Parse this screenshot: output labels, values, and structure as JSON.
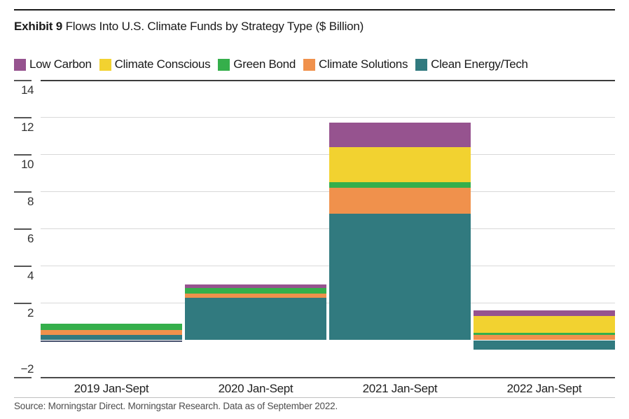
{
  "header": {
    "title_prefix": "Exhibit 9",
    "title_rest": " Flows Into U.S. Climate Funds by Strategy Type ($ Billion)"
  },
  "source_line": "Source: Morningstar Direct. Morningstar Research. Data as of September 2022.",
  "colors": {
    "grid_light": "#d9d9d9",
    "grid_dark_top": "#3c3c3c",
    "axis_line": "#4a4a4a",
    "tick_dash": "#555555",
    "text": "#1a1a1a"
  },
  "chart_data": {
    "type": "bar",
    "stacked": true,
    "title": "Flows Into U.S. Climate Funds by Strategy Type ($ Billion)",
    "unit": "$ Billion",
    "categories": [
      "2019 Jan-Sept",
      "2020 Jan-Sept",
      "2021 Jan-Sept",
      "2022 Jan-Sept"
    ],
    "series": [
      {
        "name": "Low Carbon",
        "color": "#96538f",
        "values": [
          -0.1,
          0.2,
          1.3,
          0.3
        ]
      },
      {
        "name": "Climate Conscious",
        "color": "#f2d230",
        "values": [
          0.0,
          0.0,
          1.9,
          0.9
        ]
      },
      {
        "name": "Green Bond",
        "color": "#35af4b",
        "values": [
          0.35,
          0.3,
          0.3,
          0.1
        ]
      },
      {
        "name": "Climate Solutions",
        "color": "#f0914c",
        "values": [
          0.25,
          0.2,
          1.4,
          0.3
        ]
      },
      {
        "name": "Clean Energy/Tech",
        "color": "#317a7f",
        "values": [
          0.3,
          2.3,
          6.8,
          -0.5
        ]
      }
    ],
    "totals_net": [
      0.8,
      3.0,
      11.7,
      1.1
    ],
    "y_ticks": [
      14,
      12,
      10,
      8,
      6,
      4,
      2,
      -2
    ],
    "y_tick_labels": [
      "14",
      "12",
      "10",
      "8",
      "6",
      "4",
      "2",
      "−2"
    ],
    "ylim": [
      -2,
      14.9
    ],
    "grid": true,
    "legend_position": "top",
    "segment_color_overrides": [
      {
        "category_index": 0,
        "series": "Low Carbon",
        "color": "#49536f"
      }
    ]
  }
}
